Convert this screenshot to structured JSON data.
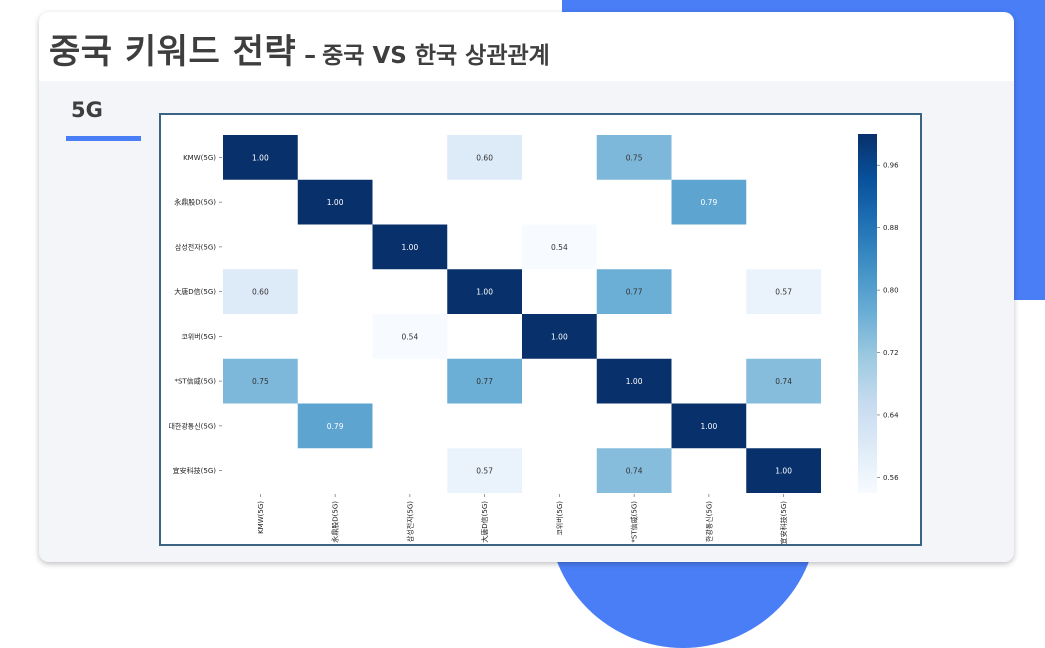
{
  "slide": {
    "title_main": "중국 키워드 전략",
    "title_dash": "–",
    "title_sub": "중국 VS 한국 상관관계",
    "section": "5G"
  },
  "colors": {
    "accent": "#4a7ef7",
    "frame": "#3b6483",
    "cmap": [
      "#f7fbff",
      "#deebf7",
      "#c6dbef",
      "#9ecae1",
      "#6baed6",
      "#4292c6",
      "#2171b5",
      "#08519c",
      "#08306b"
    ]
  },
  "chart_data": {
    "type": "heatmap",
    "labels": [
      "KMW(5G)",
      "永鼎股D(5G)",
      "삼성전자(5G)",
      "大唐D信(5G)",
      "코위버(5G)",
      "*ST信威(5G)",
      "대한광통신(5G)",
      "宜安科技(5G)"
    ],
    "x_labels": [
      "KMW(5G)",
      "永鼎股D(5G)",
      "삼성전자(5G)",
      "大唐D信(5G)",
      "코위버(5G)",
      "*ST信威(5G)",
      "한광통신(5G)",
      "宜安科技(5G)"
    ],
    "matrix": [
      [
        1.0,
        null,
        null,
        0.6,
        null,
        0.75,
        null,
        null
      ],
      [
        null,
        1.0,
        null,
        null,
        null,
        null,
        0.79,
        null
      ],
      [
        null,
        null,
        1.0,
        null,
        0.54,
        null,
        null,
        null
      ],
      [
        0.6,
        null,
        null,
        1.0,
        null,
        0.77,
        null,
        0.57
      ],
      [
        null,
        null,
        0.54,
        null,
        1.0,
        null,
        null,
        null
      ],
      [
        0.75,
        null,
        null,
        0.77,
        null,
        1.0,
        null,
        0.74
      ],
      [
        null,
        0.79,
        null,
        null,
        null,
        null,
        1.0,
        null
      ],
      [
        null,
        null,
        null,
        0.57,
        null,
        0.74,
        null,
        1.0
      ]
    ],
    "cell_labels": [
      [
        "1.00",
        "",
        "",
        "0.60",
        "",
        "0.75",
        "",
        ""
      ],
      [
        "",
        "1.00",
        "",
        "",
        "",
        "",
        "0.79",
        ""
      ],
      [
        "",
        "",
        "1.00",
        "",
        "0.54",
        "",
        "",
        ""
      ],
      [
        "0.60",
        "",
        "",
        "1.00",
        "",
        "0.77",
        "",
        "0.57"
      ],
      [
        "",
        "",
        "0.54",
        "",
        "1.00",
        "",
        "",
        ""
      ],
      [
        "0.75",
        "",
        "",
        "0.77",
        "",
        "1.00",
        "",
        "0.74"
      ],
      [
        "",
        "0.79",
        "",
        "",
        "",
        "",
        "1.00",
        ""
      ],
      [
        "",
        "",
        "",
        "0.57",
        "",
        "0.74",
        "",
        "1.00"
      ]
    ],
    "colorbar": {
      "range": [
        0.54,
        1.0
      ],
      "ticks": [
        0.96,
        0.88,
        0.8,
        0.72,
        0.64,
        0.56
      ],
      "tick_labels": [
        "0.96",
        "0.88",
        "0.80",
        "0.72",
        "0.64",
        "0.56"
      ]
    }
  }
}
